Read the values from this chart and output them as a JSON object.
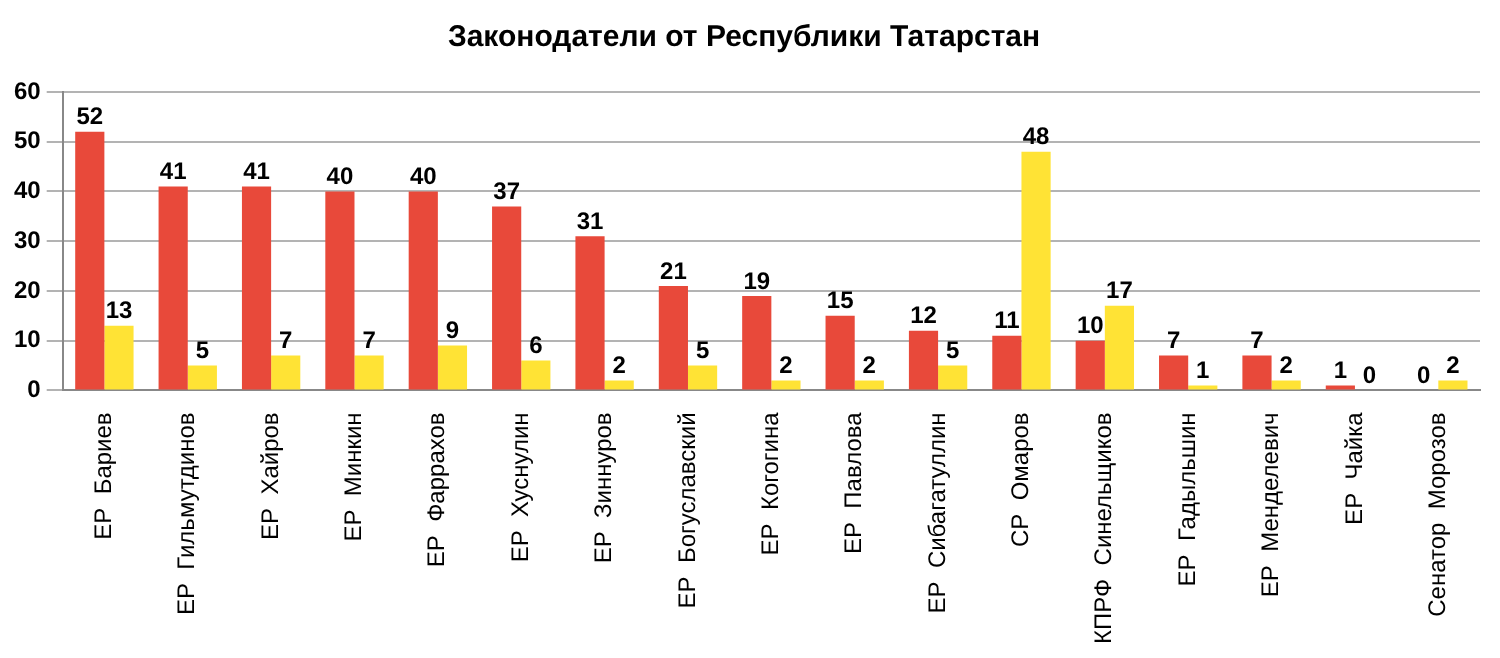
{
  "chart_data": {
    "type": "bar",
    "title": "Законодатели от Республики Татарстан",
    "categories": [
      "ЕР  Бариев",
      "ЕР  Гильмутдинов",
      "ЕР  Хайров",
      "ЕР  Минкин",
      "ЕР  Фаррахов",
      "ЕР  Хуснулин",
      "ЕР  Зиннуров",
      "ЕР  Богуславский",
      "ЕР  Когогина",
      "ЕР  Павлова",
      "ЕР  Сибагатуллин",
      "СР  Омаров",
      "КПРФ  Синельщиков",
      "ЕР  Гадыльшин",
      "ЕР  Менделевич",
      "ЕР  Чайка",
      "Сенатор  Морозов"
    ],
    "series": [
      {
        "color": "#e8493a",
        "values": [
          52,
          41,
          41,
          40,
          40,
          37,
          31,
          21,
          19,
          15,
          12,
          11,
          10,
          7,
          7,
          1,
          0
        ]
      },
      {
        "color": "#ffe335",
        "values": [
          13,
          5,
          7,
          7,
          9,
          6,
          2,
          5,
          2,
          2,
          5,
          48,
          17,
          1,
          2,
          0,
          2
        ]
      }
    ],
    "ylim": [
      0,
      60
    ],
    "yticks": [
      0,
      10,
      20,
      30,
      40,
      50,
      60
    ],
    "grid": "y",
    "data_labels": true,
    "legend": false
  }
}
